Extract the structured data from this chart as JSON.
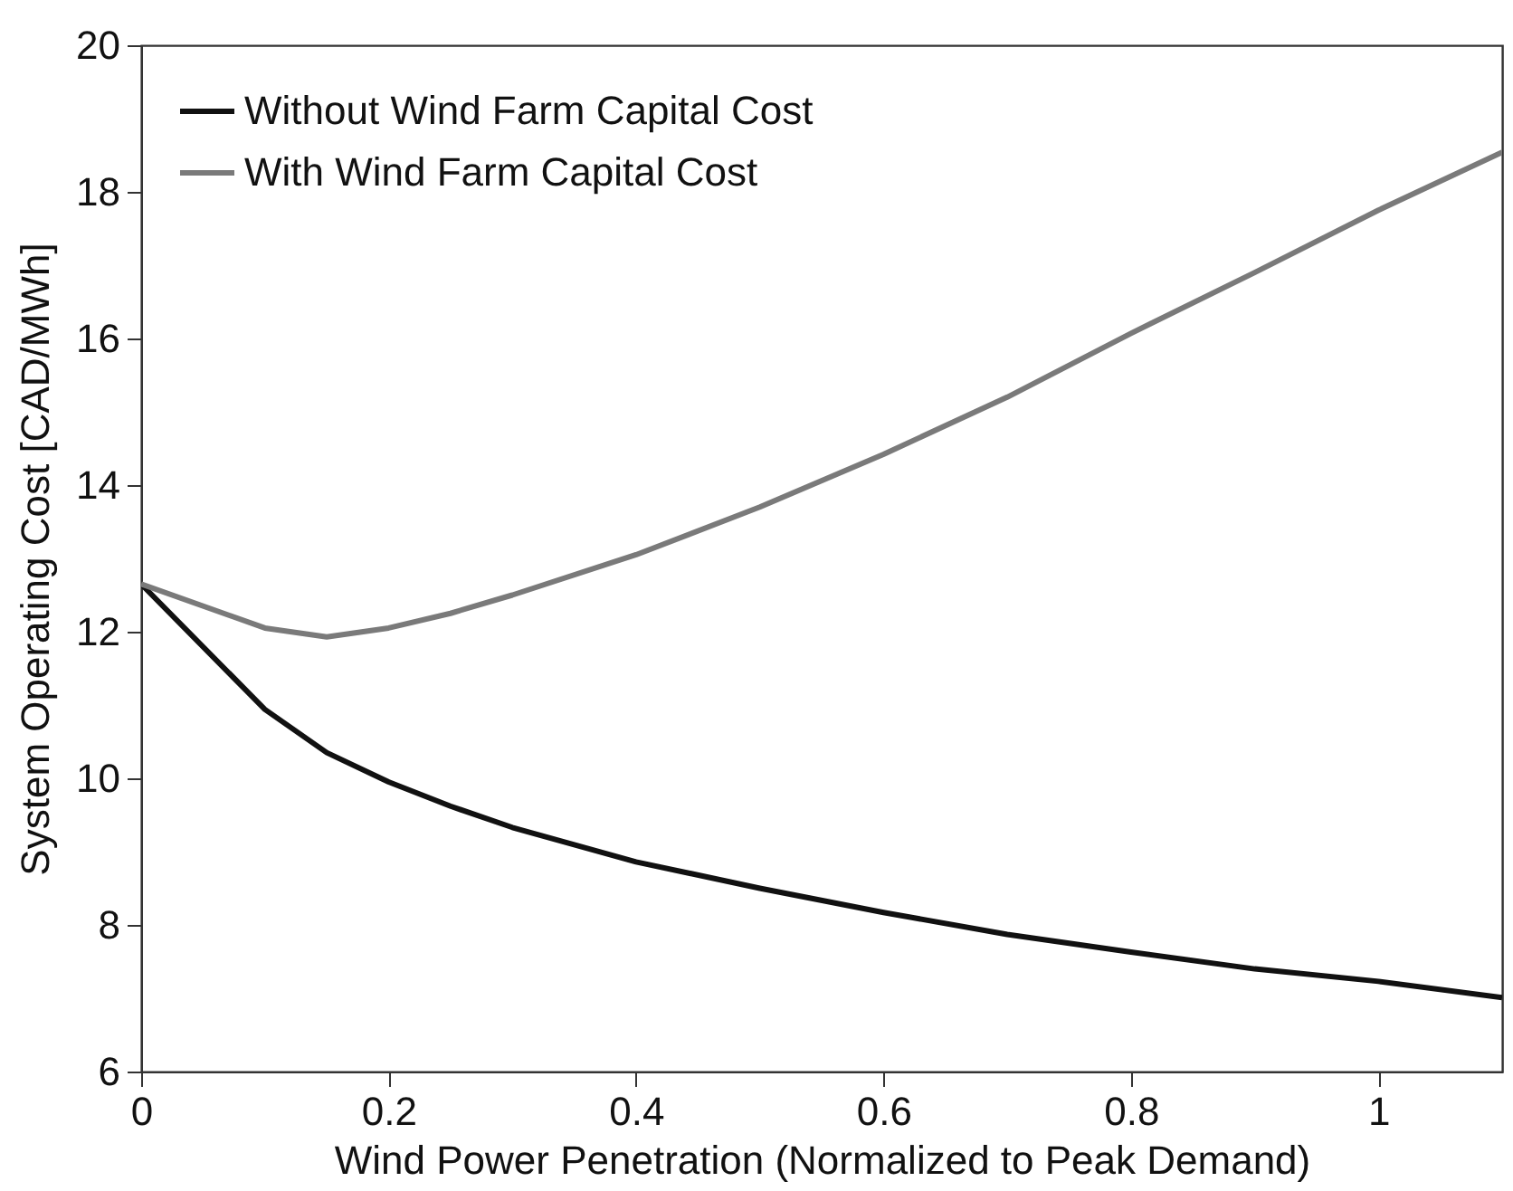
{
  "chart_data": {
    "type": "line",
    "xlabel": "Wind Power Penetration (Normalized to Peak Demand)",
    "ylabel": "System Operating Cost [CAD/MWh]",
    "x": [
      0,
      0.1,
      0.15,
      0.2,
      0.25,
      0.3,
      0.4,
      0.5,
      0.6,
      0.7,
      0.8,
      0.9,
      1.0,
      1.1
    ],
    "series": [
      {
        "name": "Without Wind Farm Capital Cost",
        "color": "#111111",
        "values": [
          12.65,
          10.94,
          10.35,
          9.95,
          9.62,
          9.33,
          8.86,
          8.5,
          8.17,
          7.87,
          7.63,
          7.4,
          7.23,
          7.01
        ]
      },
      {
        "name": "With Wind Farm Capital Cost",
        "color": "#7a7a7a",
        "values": [
          12.65,
          12.05,
          11.93,
          12.05,
          12.25,
          12.5,
          13.05,
          13.7,
          14.42,
          15.2,
          16.07,
          16.9,
          17.75,
          18.54
        ]
      }
    ],
    "xlim": [
      0,
      1.1
    ],
    "xticks": [
      0,
      0.2,
      0.4,
      0.6,
      0.8,
      1
    ],
    "ylim": [
      6,
      20
    ],
    "yticks": [
      6,
      8,
      10,
      12,
      14,
      16,
      18,
      20
    ],
    "legend": "top left",
    "grid": false,
    "line_style": "solid",
    "marker": "none"
  }
}
